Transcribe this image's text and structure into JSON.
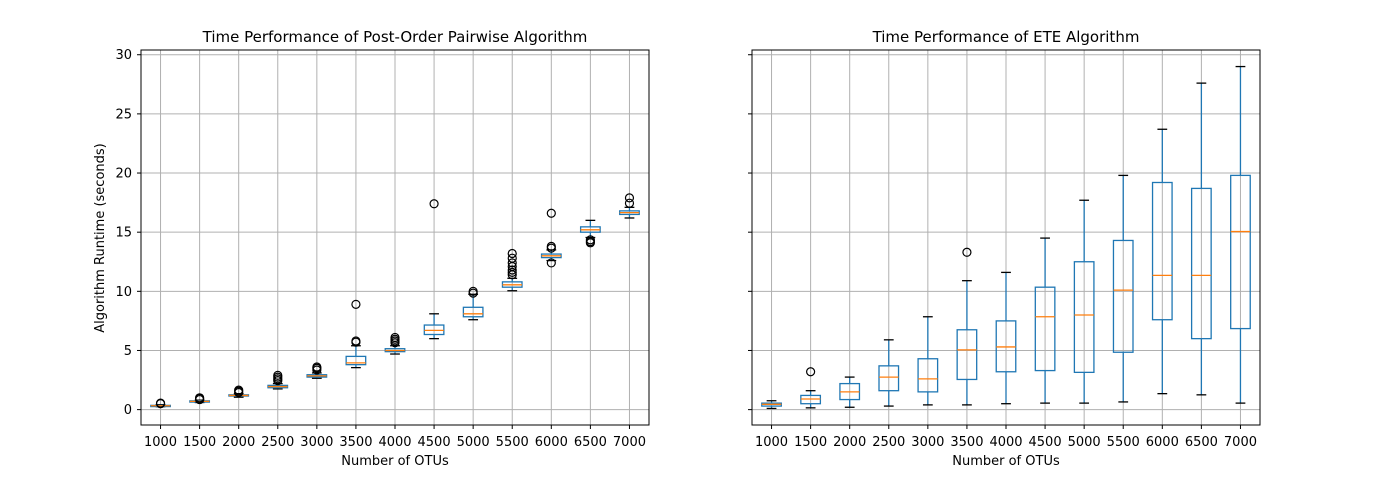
{
  "chart_data": [
    {
      "type": "box",
      "title": "Time Performance of Post-Order Pairwise Algorithm",
      "xlabel": "Number of OTUs",
      "ylabel": "Algorithm Runtime (seconds)",
      "ylim": [
        -1.3,
        30.4
      ],
      "yticks": [
        0,
        5,
        10,
        15,
        20,
        25,
        30
      ],
      "show_ytick_labels": true,
      "grid": true,
      "categories": [
        "1000",
        "1500",
        "2000",
        "2500",
        "3000",
        "3500",
        "4000",
        "4500",
        "5000",
        "5500",
        "6000",
        "6500",
        "7000"
      ],
      "boxes": [
        {
          "whislo": 0.25,
          "q1": 0.3,
          "med": 0.33,
          "q3": 0.36,
          "whishi": 0.42,
          "fliers": [
            0.5,
            0.55
          ]
        },
        {
          "whislo": 0.6,
          "q1": 0.65,
          "med": 0.7,
          "q3": 0.74,
          "whishi": 0.8,
          "fliers": [
            0.85,
            0.95,
            1.0
          ]
        },
        {
          "whislo": 1.05,
          "q1": 1.15,
          "med": 1.2,
          "q3": 1.25,
          "whishi": 1.35,
          "fliers": [
            1.45,
            1.55,
            1.65
          ]
        },
        {
          "whislo": 1.75,
          "q1": 1.85,
          "med": 1.95,
          "q3": 2.05,
          "whishi": 2.2,
          "fliers": [
            2.45,
            2.6,
            2.75,
            2.9
          ]
        },
        {
          "whislo": 2.65,
          "q1": 2.75,
          "med": 2.85,
          "q3": 2.95,
          "whishi": 3.1,
          "fliers": [
            3.35,
            3.5,
            3.6
          ]
        },
        {
          "whislo": 3.55,
          "q1": 3.8,
          "med": 3.95,
          "q3": 4.5,
          "whishi": 5.4,
          "fliers": [
            5.7,
            5.8,
            8.9
          ]
        },
        {
          "whislo": 4.7,
          "q1": 4.9,
          "med": 5.0,
          "q3": 5.15,
          "whishi": 5.4,
          "fliers": [
            5.65,
            5.8,
            5.95,
            6.1
          ]
        },
        {
          "whislo": 6.0,
          "q1": 6.35,
          "med": 6.7,
          "q3": 7.15,
          "whishi": 8.1,
          "fliers": [
            17.4
          ]
        },
        {
          "whislo": 7.6,
          "q1": 7.85,
          "med": 8.1,
          "q3": 8.65,
          "whishi": 9.75,
          "fliers": [
            9.85,
            10.0
          ]
        },
        {
          "whislo": 10.05,
          "q1": 10.35,
          "med": 10.55,
          "q3": 10.8,
          "whishi": 11.1,
          "fliers": [
            11.4,
            11.6,
            11.8,
            12.1,
            12.4,
            12.8,
            13.2
          ]
        },
        {
          "whislo": 12.6,
          "q1": 12.85,
          "med": 13.0,
          "q3": 13.15,
          "whishi": 13.5,
          "fliers": [
            12.4,
            13.65,
            13.8,
            16.6
          ]
        },
        {
          "whislo": 14.55,
          "q1": 15.0,
          "med": 15.2,
          "q3": 15.45,
          "whishi": 16.0,
          "fliers": [
            14.1,
            14.2,
            14.35
          ]
        },
        {
          "whislo": 16.2,
          "q1": 16.5,
          "med": 16.65,
          "q3": 16.8,
          "whishi": 17.1,
          "fliers": [
            17.45,
            17.9
          ]
        }
      ]
    },
    {
      "type": "box",
      "title": "Time Performance of ETE Algorithm",
      "xlabel": "Number of OTUs",
      "ylabel": "",
      "ylim": [
        -1.3,
        30.4
      ],
      "yticks": [
        0,
        5,
        10,
        15,
        20,
        25,
        30
      ],
      "show_ytick_labels": false,
      "grid": true,
      "categories": [
        "1000",
        "1500",
        "2000",
        "2500",
        "3000",
        "3500",
        "4000",
        "4500",
        "5000",
        "5500",
        "6000",
        "6500",
        "7000"
      ],
      "boxes": [
        {
          "whislo": 0.1,
          "q1": 0.3,
          "med": 0.45,
          "q3": 0.55,
          "whishi": 0.75,
          "fliers": []
        },
        {
          "whislo": 0.15,
          "q1": 0.5,
          "med": 0.9,
          "q3": 1.2,
          "whishi": 1.6,
          "fliers": [
            3.2
          ]
        },
        {
          "whislo": 0.2,
          "q1": 0.85,
          "med": 1.5,
          "q3": 2.2,
          "whishi": 2.75,
          "fliers": []
        },
        {
          "whislo": 0.3,
          "q1": 1.6,
          "med": 2.75,
          "q3": 3.7,
          "whishi": 5.9,
          "fliers": []
        },
        {
          "whislo": 0.4,
          "q1": 1.5,
          "med": 2.6,
          "q3": 4.3,
          "whishi": 7.85,
          "fliers": []
        },
        {
          "whislo": 0.4,
          "q1": 2.55,
          "med": 5.05,
          "q3": 6.75,
          "whishi": 10.9,
          "fliers": [
            13.3
          ]
        },
        {
          "whislo": 0.5,
          "q1": 3.2,
          "med": 5.3,
          "q3": 7.5,
          "whishi": 11.6,
          "fliers": []
        },
        {
          "whislo": 0.55,
          "q1": 3.3,
          "med": 7.85,
          "q3": 10.35,
          "whishi": 14.5,
          "fliers": []
        },
        {
          "whislo": 0.55,
          "q1": 3.15,
          "med": 8.0,
          "q3": 12.5,
          "whishi": 17.7,
          "fliers": []
        },
        {
          "whislo": 0.65,
          "q1": 4.85,
          "med": 10.1,
          "q3": 14.3,
          "whishi": 19.8,
          "fliers": []
        },
        {
          "whislo": 1.35,
          "q1": 7.6,
          "med": 11.35,
          "q3": 19.2,
          "whishi": 23.7,
          "fliers": []
        },
        {
          "whislo": 1.25,
          "q1": 6.0,
          "med": 11.35,
          "q3": 18.7,
          "whishi": 27.6,
          "fliers": []
        },
        {
          "whislo": 0.55,
          "q1": 6.85,
          "med": 15.05,
          "q3": 19.8,
          "whishi": 29.0,
          "fliers": []
        }
      ]
    }
  ],
  "colors": {
    "box": "#1f77b4",
    "median": "#ff7f0e",
    "whisker_left": "#1f77b4",
    "whisker_right": "#1f77b4",
    "cap_left": "#000000",
    "cap_right": "#000000",
    "flier": "#000000",
    "grid": "#b0b0b0",
    "axes": "#000000"
  }
}
